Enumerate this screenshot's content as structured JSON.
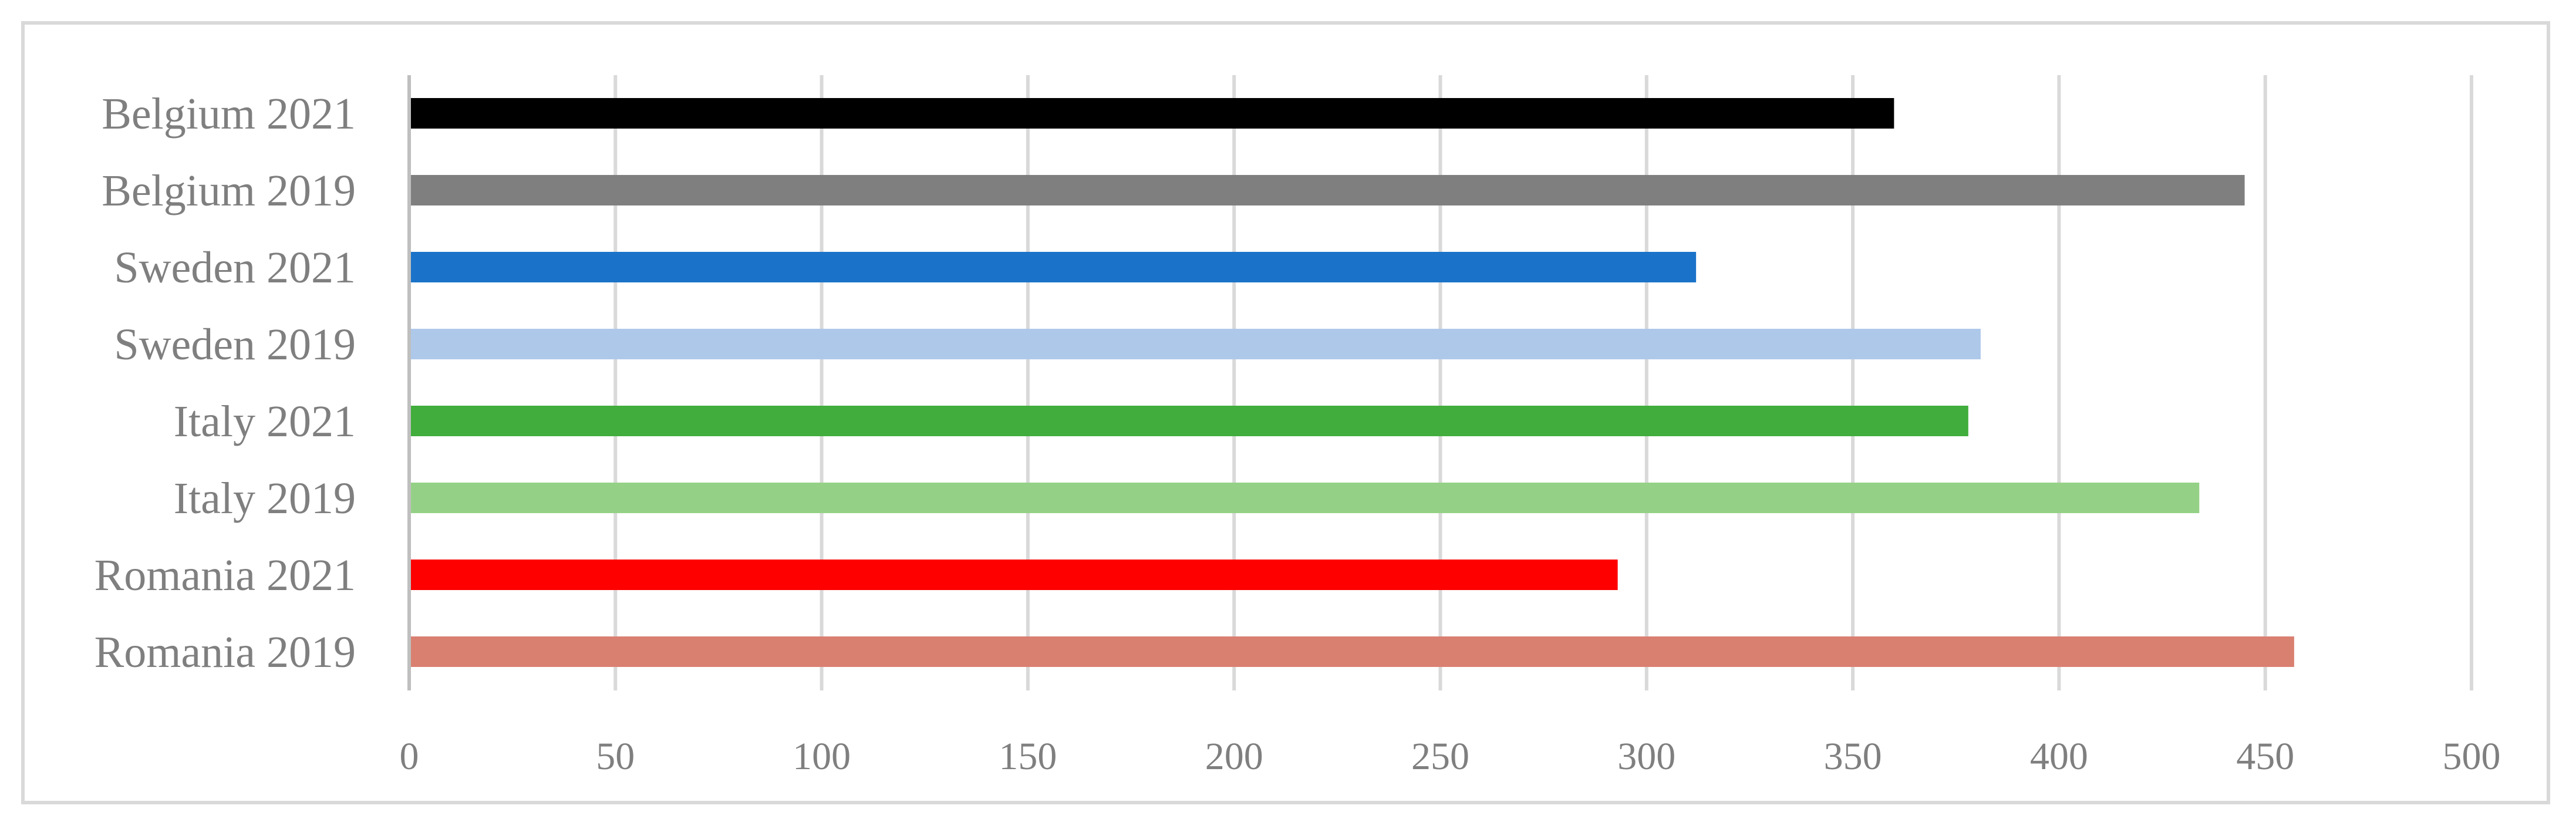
{
  "chart_data": {
    "type": "bar",
    "orientation": "horizontal",
    "categories": [
      "Belgium 2021",
      "Belgium 2019",
      "Sweden 2021",
      "Sweden 2019",
      "Italy 2021",
      "Italy 2019",
      "Romania 2021",
      "Romania 2019"
    ],
    "values": [
      360,
      445,
      312,
      381,
      378,
      434,
      293,
      457
    ],
    "colors": [
      "#000000",
      "#7f7f7f",
      "#1a73c8",
      "#aec8ea",
      "#41ad3c",
      "#94d186",
      "#ff0000",
      "#d98071"
    ],
    "xticks": [
      "0",
      "50",
      "100",
      "150",
      "200",
      "250",
      "300",
      "350",
      "400",
      "450",
      "500"
    ],
    "xlim": [
      0,
      500
    ],
    "title": "",
    "xlabel": "",
    "ylabel": "",
    "grid": true,
    "legend": "none"
  }
}
